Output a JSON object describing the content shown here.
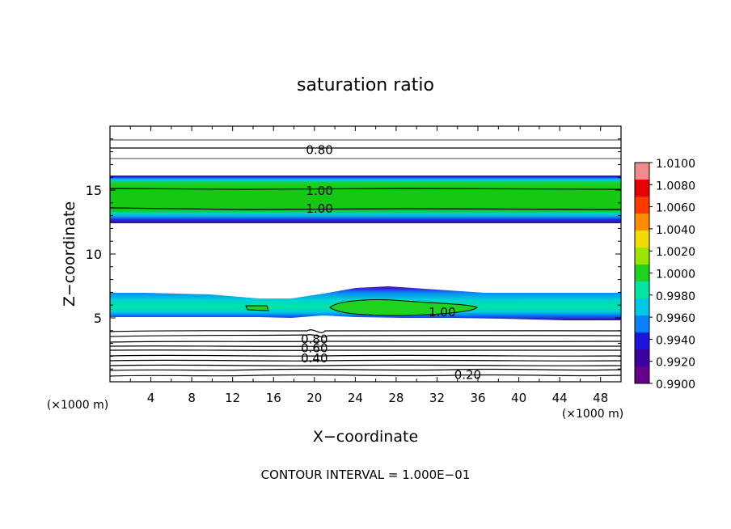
{
  "chart_data": {
    "type": "contour",
    "title": "saturation ratio",
    "xlabel": "X−coordinate",
    "ylabel": "Z−coordinate",
    "x_unit_left": "(×1000 m)",
    "x_unit_right": "(×1000 m)",
    "xlim": [
      0,
      50
    ],
    "ylim": [
      0,
      20
    ],
    "x_ticks": [
      "4",
      "8",
      "12",
      "16",
      "20",
      "24",
      "28",
      "32",
      "36",
      "40",
      "44",
      "48"
    ],
    "y_ticks": [
      "5",
      "10",
      "15"
    ],
    "footer": "CONTOUR INTERVAL = 1.000E−01",
    "colorbar": {
      "labels": [
        "1.0100",
        "1.0080",
        "1.0060",
        "1.0040",
        "1.0020",
        "1.0000",
        "0.9980",
        "0.9960",
        "0.9940",
        "0.9920",
        "0.9900"
      ],
      "colors": [
        "#f08c8c",
        "#e60000",
        "#ff3a00",
        "#ff8c00",
        "#f0dc00",
        "#9be600",
        "#1ed21e",
        "#00e6a0",
        "#00c8e6",
        "#0a82ff",
        "#1e14dc",
        "#3c00a0",
        "#64008c"
      ]
    },
    "contour_labels": [
      {
        "text": "0.80",
        "x": 20.5,
        "y": 18.2
      },
      {
        "text": "1.00",
        "x": 20.5,
        "y": 15.0
      },
      {
        "text": "1.00",
        "x": 20.5,
        "y": 13.6
      },
      {
        "text": "1.00",
        "x": 32.5,
        "y": 5.5
      },
      {
        "text": "0.80",
        "x": 20.0,
        "y": 3.4
      },
      {
        "text": "0.60",
        "x": 20.0,
        "y": 2.7
      },
      {
        "text": "0.40",
        "x": 20.0,
        "y": 1.9
      },
      {
        "text": "0.20",
        "x": 35.0,
        "y": 0.6
      }
    ],
    "bands": [
      {
        "name": "upper",
        "z_top": 16.0,
        "z_bottom": 12.5
      },
      {
        "name": "lower",
        "z_top_base": 6.8,
        "z_bottom_base": 5.1
      }
    ]
  }
}
